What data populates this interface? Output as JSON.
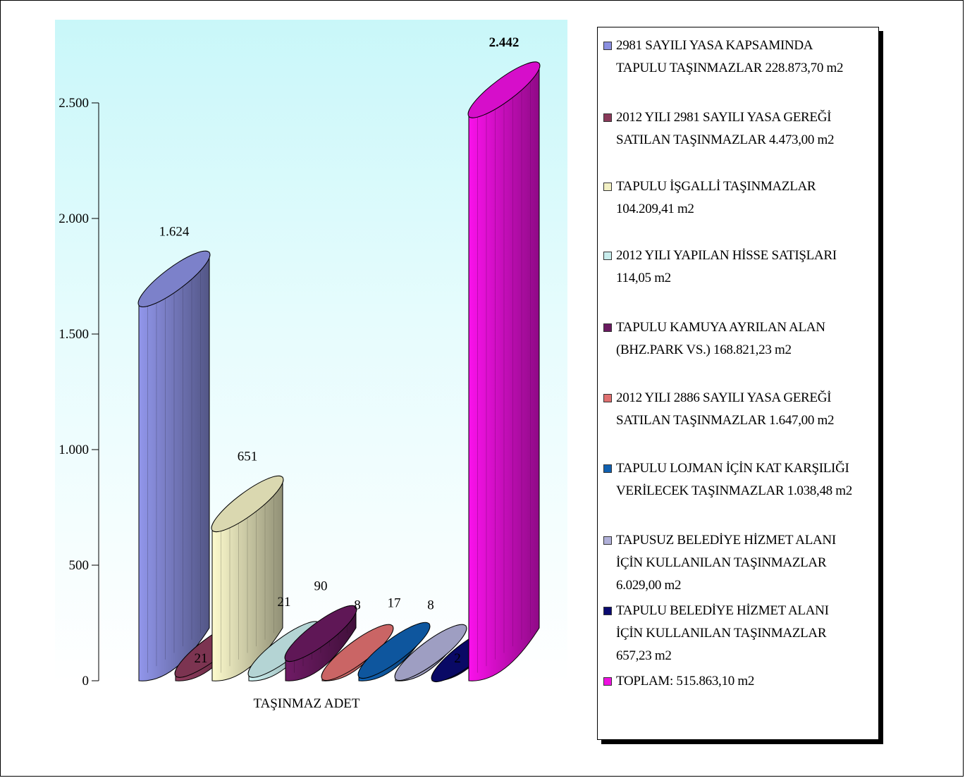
{
  "chart_data": {
    "type": "bar",
    "xlabel": "TAŞINMAZ ADET",
    "ylim": [
      0,
      2500
    ],
    "yticks": [
      0,
      500,
      1000,
      1500,
      2000,
      2500
    ],
    "ytick_labels": [
      "0",
      "500",
      "1.000",
      "1.500",
      "2.000",
      "2.500"
    ],
    "legend_position": "right",
    "series": [
      {
        "name": "2981 SAYILI YASA KAPSAMINDA\nTAPULU TAŞINMAZLAR 228.873,70 m2",
        "value": 1624,
        "label": "1.624",
        "color": "#8a8fe0"
      },
      {
        "name": "2012 YILI 2981 SAYILI YASA GEREĞİ\nSATILAN TAŞINMAZLAR 4.473,00 m2",
        "value": 21,
        "label": "21",
        "color": "#8a3a5a"
      },
      {
        "name": "TAPULU İŞGALLİ TAŞINMAZLAR\n104.209,41 m2",
        "value": 651,
        "label": "651",
        "color": "#f2f0c4"
      },
      {
        "name": "2012 YILI YAPILAN HİSSE SATIŞLARI\n114,05 m2",
        "value": 21,
        "label": "21",
        "color": "#c8ecec"
      },
      {
        "name": "TAPULU KAMUYA AYRILAN ALAN\n(BHZ.PARK VS.) 168.821,23 m2",
        "value": 90,
        "label": "90",
        "color": "#6a1a60"
      },
      {
        "name": "2012 YILI 2886 SAYILI YASA GEREĞİ\nSATILAN TAŞINMAZLAR 1.647,00 m2",
        "value": 8,
        "label": "8",
        "color": "#e07070"
      },
      {
        "name": "TAPULU LOJMAN İÇİN KAT KARŞILIĞI\nVERİLECEK TAŞINMAZLAR 1.038,48 m2",
        "value": 17,
        "label": "17",
        "color": "#1060b0"
      },
      {
        "name": "TAPUSUZ BELEDİYE HİZMET ALANI\nİÇİN KULLANILAN TAŞINMAZLAR\n6.029,00 m2",
        "value": 8,
        "label": "8",
        "color": "#b0b0d8"
      },
      {
        "name": "TAPULU BELEDİYE HİZMET ALANI\nİÇİN KULLANILAN TAŞINMAZLAR\n657,23 m2",
        "value": 2,
        "label": "2",
        "color": "#0a0a70"
      },
      {
        "name": "TOPLAM: 515.863,10 m2",
        "value": 2442,
        "label": "2.442",
        "color": "#ee10e0"
      }
    ]
  }
}
